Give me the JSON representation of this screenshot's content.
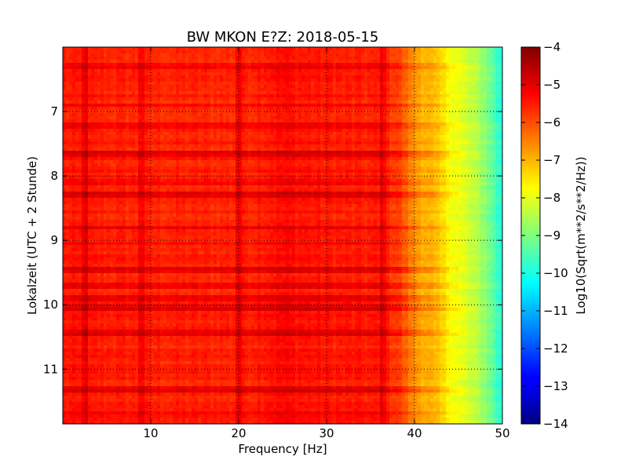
{
  "chart_data": {
    "type": "heatmap",
    "title": "BW MKON E?Z: 2018-05-15",
    "xlabel": "Frequency [Hz]",
    "ylabel": "Lokalzeit (UTC + 2 Stunde)",
    "xlim": [
      0,
      50
    ],
    "ylim": [
      6,
      11.85
    ],
    "y_inverted": true,
    "xticks": [
      10,
      20,
      30,
      40,
      50
    ],
    "yticks": [
      7,
      8,
      9,
      10,
      11
    ],
    "grid": true,
    "grid_style": "dotted",
    "colorbar": {
      "label": "Log10(Sqrt(m**2/s**2/Hz))",
      "range": [
        -14,
        -4
      ],
      "ticks": [
        -4,
        -5,
        -6,
        -7,
        -8,
        -9,
        -10,
        -11,
        -12,
        -13,
        -14
      ],
      "colormap": "jet"
    },
    "frequency_profile": {
      "hz": [
        0,
        5,
        10,
        20,
        25,
        30,
        36,
        38,
        40,
        42,
        44,
        46,
        48,
        50
      ],
      "log10_amplitude": [
        -5.5,
        -5.55,
        -5.6,
        -5.6,
        -5.35,
        -5.5,
        -5.55,
        -5.8,
        -6.7,
        -7.1,
        -7.7,
        -8.2,
        -8.8,
        -10.0
      ]
    },
    "strong_lines_hz": [
      2.5,
      9,
      20,
      36.5
    ],
    "strong_bands_time": [
      7.65,
      8.3,
      8.8,
      9.45,
      9.9,
      10.05,
      10.45,
      11.3
    ],
    "weak_bands_time": [
      6.3,
      6.9,
      7.2,
      8.1,
      9.05,
      9.7,
      10.8,
      11.7
    ]
  }
}
